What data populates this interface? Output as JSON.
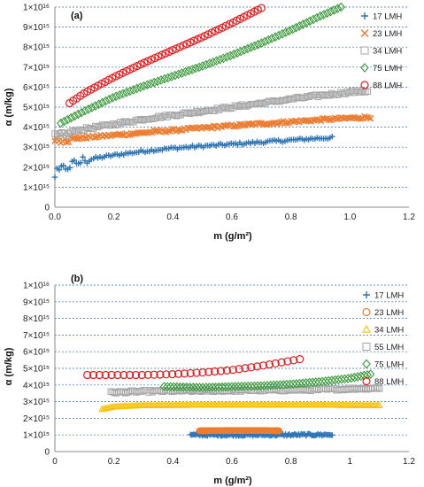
{
  "panels": [
    {
      "label": "(a)",
      "chart_data": {
        "type": "scatter",
        "title": "",
        "xlabel": "m (g/m²)",
        "ylabel": "α (m/kg)",
        "xlim": [
          0,
          1.2
        ],
        "ylim": [
          0,
          1e+16
        ],
        "x_ticks": [
          "0.0",
          "0.2",
          "0.4",
          "0.6",
          "0.8",
          "1.0",
          "1.2"
        ],
        "y_ticks": [
          "0",
          "1×10¹⁵",
          "2×10¹⁵",
          "3×10¹⁵",
          "4×10¹⁵",
          "5×10¹⁵",
          "6×10¹⁵",
          "7×10¹⁵",
          "8×10¹⁵",
          "9×10¹⁵",
          "1×10¹⁶"
        ],
        "grid": "horizontal dashed",
        "legend_position": "right",
        "series": [
          {
            "name": "17 LMH",
            "marker": "plus",
            "color": "#2e75b6",
            "n": 130,
            "x": [
              0.0,
              0.02,
              0.05,
              0.1,
              0.2,
              0.3,
              0.4,
              0.5,
              0.6,
              0.7,
              0.8,
              0.9,
              0.94
            ],
            "y": [
              1600000000000000.0,
              1850000000000000.0,
              2100000000000000.0,
              2350000000000000.0,
              2600000000000000.0,
              2800000000000000.0,
              2950000000000000.0,
              3050000000000000.0,
              3150000000000000.0,
              3250000000000000.0,
              3350000000000000.0,
              3450000000000000.0,
              3470000000000000.0
            ]
          },
          {
            "name": "23 LMH",
            "marker": "x",
            "color": "#ed7d31",
            "n": 160,
            "x": [
              0.0,
              0.05,
              0.1,
              0.2,
              0.3,
              0.4,
              0.5,
              0.6,
              0.7,
              0.8,
              0.9,
              1.0,
              1.07
            ],
            "y": [
              3300000000000000.0,
              3400000000000000.0,
              3480000000000000.0,
              3600000000000000.0,
              3720000000000000.0,
              3840000000000000.0,
              3960000000000000.0,
              4070000000000000.0,
              4170000000000000.0,
              4270000000000000.0,
              4370000000000000.0,
              4450000000000000.0,
              4500000000000000.0
            ]
          },
          {
            "name": "34 LMH",
            "marker": "square",
            "color": "#a5a5a5",
            "n": 140,
            "x": [
              0.0,
              0.05,
              0.1,
              0.2,
              0.3,
              0.4,
              0.5,
              0.6,
              0.7,
              0.8,
              0.9,
              1.0,
              1.06
            ],
            "y": [
              3500000000000000.0,
              3750000000000000.0,
              3900000000000000.0,
              4150000000000000.0,
              4400000000000000.0,
              4600000000000000.0,
              4800000000000000.0,
              5000000000000000.0,
              5200000000000000.0,
              5400000000000000.0,
              5580000000000000.0,
              5750000000000000.0,
              5800000000000000.0
            ]
          },
          {
            "name": "75 LMH",
            "marker": "diamond",
            "color": "#3a9a3a",
            "n": 82,
            "x": [
              0.02,
              0.1,
              0.2,
              0.3,
              0.4,
              0.5,
              0.6,
              0.7,
              0.8,
              0.9,
              0.97
            ],
            "y": [
              4200000000000000.0,
              4800000000000000.0,
              5500000000000000.0,
              6050000000000000.0,
              6550000000000000.0,
              7050000000000000.0,
              7600000000000000.0,
              8200000000000000.0,
              8850000000000000.0,
              9550000000000000.0,
              1e+16
            ]
          },
          {
            "name": "88 LMH",
            "marker": "circle",
            "color": "#e41a1c",
            "n": 55,
            "x": [
              0.05,
              0.1,
              0.2,
              0.3,
              0.4,
              0.5,
              0.6,
              0.7
            ],
            "y": [
              5200000000000000.0,
              5700000000000000.0,
              6500000000000000.0,
              7200000000000000.0,
              7850000000000000.0,
              8500000000000000.0,
              9200000000000000.0,
              9950000000000000.0
            ]
          }
        ]
      }
    },
    {
      "label": "(b)",
      "chart_data": {
        "type": "scatter",
        "title": "",
        "xlabel": "m (g/m²)",
        "ylabel": "α (m/kg)",
        "xlim": [
          0,
          1.2
        ],
        "ylim": [
          0,
          1e+16
        ],
        "x_ticks": [
          "0",
          "0.2",
          "0.4",
          "0.6",
          "0.8",
          "1",
          "1.2"
        ],
        "y_ticks": [
          "0",
          "1×10¹⁵",
          "2×10¹⁵",
          "3×10¹⁵",
          "4×10¹⁵",
          "5×10¹⁵",
          "6×10¹⁵",
          "7×10¹⁵",
          "8×10¹⁵",
          "9×10¹⁵",
          "1×10¹⁶"
        ],
        "grid": "horizontal dashed",
        "legend_position": "right",
        "series": [
          {
            "name": "17 LMH",
            "marker": "plus",
            "color": "#2e75b6",
            "n": 110,
            "x": [
              0.46,
              0.6,
              0.8,
              0.94
            ],
            "y": [
              1000000000000000.0,
              1000000000000000.0,
              1000000000000000.0,
              1020000000000000.0
            ]
          },
          {
            "name": "23 LMH",
            "marker": "circle",
            "color": "#ed7d31",
            "n": 140,
            "x": [
              0.49,
              0.6,
              0.7,
              0.76
            ],
            "y": [
              1250000000000000.0,
              1270000000000000.0,
              1270000000000000.0,
              1250000000000000.0
            ]
          },
          {
            "name": "34 LMH",
            "marker": "triangle",
            "color": "#ffc000",
            "n": 150,
            "x": [
              0.16,
              0.2,
              0.3,
              0.5,
              0.7,
              0.9,
              1.1
            ],
            "y": [
              2550000000000000.0,
              2700000000000000.0,
              2780000000000000.0,
              2800000000000000.0,
              2800000000000000.0,
              2800000000000000.0,
              2780000000000000.0
            ]
          },
          {
            "name": "55 LMH",
            "marker": "square",
            "color": "#a5a5a5",
            "n": 150,
            "x": [
              0.19,
              0.3,
              0.5,
              0.7,
              0.9,
              1.1
            ],
            "y": [
              3550000000000000.0,
              3620000000000000.0,
              3650000000000000.0,
              3680000000000000.0,
              3720000000000000.0,
              3820000000000000.0
            ]
          },
          {
            "name": "75 LMH",
            "marker": "diamond",
            "color": "#3a9a3a",
            "n": 65,
            "x": [
              0.37,
              0.5,
              0.6,
              0.7,
              0.8,
              0.9,
              1.0,
              1.07
            ],
            "y": [
              3900000000000000.0,
              3850000000000000.0,
              3900000000000000.0,
              3950000000000000.0,
              4050000000000000.0,
              4200000000000000.0,
              4400000000000000.0,
              4650000000000000.0
            ]
          },
          {
            "name": "88 LMH",
            "marker": "circle",
            "color": "#e41a1c",
            "n": 36,
            "x": [
              0.11,
              0.2,
              0.3,
              0.4,
              0.5,
              0.6,
              0.7,
              0.83
            ],
            "y": [
              4600000000000000.0,
              4600000000000000.0,
              4600000000000000.0,
              4650000000000000.0,
              4750000000000000.0,
              4900000000000000.0,
              5150000000000000.0,
              5550000000000000.0
            ]
          }
        ]
      }
    }
  ]
}
